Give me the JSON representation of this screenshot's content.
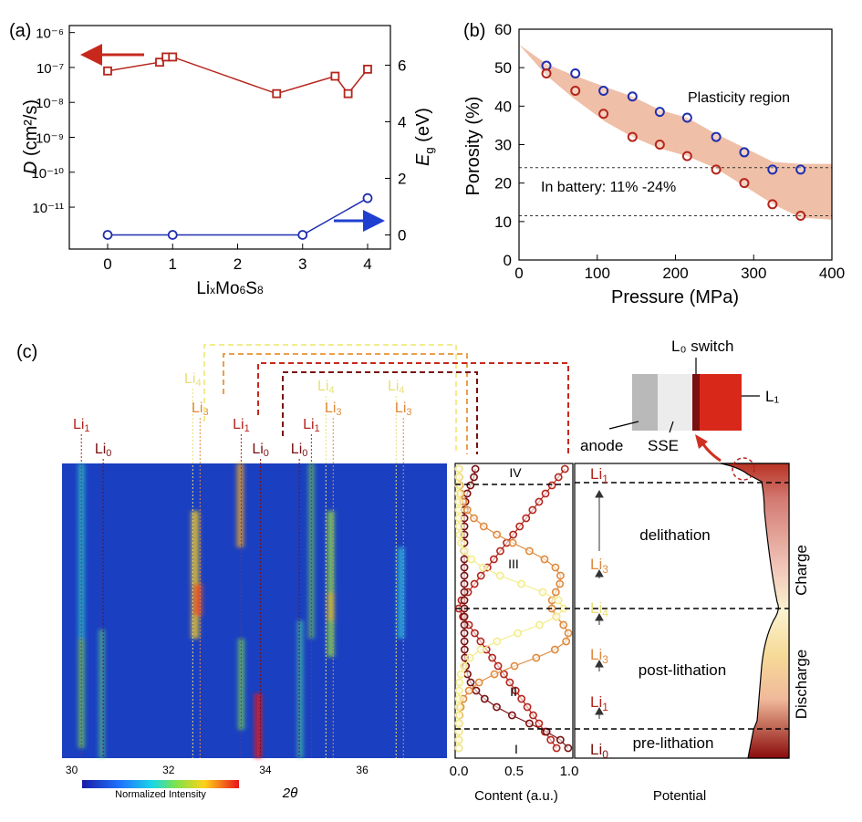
{
  "panels": {
    "a": "(a)",
    "b": "(b)",
    "c": "(c)"
  },
  "colors": {
    "red": "#b5251c",
    "blue": "#1f2fb0",
    "orange_fill": "#e9a98a",
    "darkred": "#7a1010",
    "orange": "#e08a3c",
    "yellow": "#f0e070",
    "lightyellow": "#f6ef9a"
  },
  "chart_data": [
    {
      "panel": "a",
      "type": "line",
      "xlabel": "LixMo6S8",
      "xticks": [
        "0",
        "1",
        "2",
        "3",
        "4"
      ],
      "ylabel_left": "D (cm²/s)",
      "ylabel_right": "Eg (eV)",
      "yticks_left": [
        "10⁻⁶",
        "10⁻⁷",
        "10⁻⁸",
        "10⁻⁹",
        "10⁻¹⁰",
        "10⁻¹¹"
      ],
      "yticks_right": [
        "6",
        "4",
        "2",
        "0"
      ],
      "ylim_left_log10": [
        -12.2,
        -5.8
      ],
      "ylim_right": [
        -0.5,
        7.4
      ],
      "series": [
        {
          "axis": "left",
          "marker": "square",
          "color": "#b5251c",
          "x": [
            0,
            0.8,
            0.9,
            1.0,
            2.6,
            3.5,
            3.7,
            4.0
          ],
          "log10_y": [
            -7.1,
            -6.85,
            -6.7,
            -6.7,
            -7.75,
            -7.25,
            -7.75,
            -7.05
          ]
        },
        {
          "axis": "right",
          "marker": "circle",
          "color": "#1f2fb0",
          "x": [
            0,
            1,
            3,
            4
          ],
          "y": [
            0,
            0,
            0,
            1.3
          ]
        }
      ]
    },
    {
      "panel": "b",
      "type": "scatter",
      "xlabel": "Pressure (MPa)",
      "ylabel": "Porosity (%)",
      "xlim": [
        0,
        400
      ],
      "ylim": [
        0,
        60
      ],
      "xticks": [
        "0",
        "100",
        "200",
        "300",
        "400"
      ],
      "yticks": [
        "0",
        "10",
        "20",
        "30",
        "40",
        "50",
        "60"
      ],
      "annotations": [
        "Plasticity region",
        "In battery: 11% -24%"
      ],
      "hlines": [
        24,
        11.5
      ],
      "band": {
        "x": [
          0,
          35,
          70,
          110,
          145,
          180,
          215,
          250,
          290,
          325,
          360,
          400
        ],
        "upper": [
          56,
          51,
          48,
          45,
          42.5,
          39,
          37,
          33,
          29,
          25.5,
          25,
          25
        ],
        "lower": [
          56,
          48,
          42,
          36,
          32,
          29,
          27,
          24,
          19,
          14.5,
          11,
          10.5
        ]
      },
      "series": [
        {
          "marker": "circle",
          "color": "#1f2fb0",
          "x": [
            35,
            72,
            108,
            145,
            180,
            215,
            252,
            288,
            324,
            360
          ],
          "y": [
            50.5,
            48.5,
            44,
            42.5,
            38.5,
            37,
            32,
            28,
            23.5,
            23.5
          ]
        },
        {
          "marker": "circle",
          "color": "#b5251c",
          "x": [
            35,
            72,
            108,
            145,
            180,
            215,
            252,
            288,
            324,
            360
          ],
          "y": [
            48.5,
            44,
            38,
            32,
            30,
            27,
            23.5,
            20,
            14.5,
            11.5
          ]
        }
      ]
    },
    {
      "panel": "c-heatmap",
      "type": "heatmap",
      "xlabel": "2θ",
      "xticks": [
        "30",
        "32",
        "34",
        "36"
      ],
      "colorbar_label": "Normalized Intensity",
      "peak_labels": [
        {
          "text": "Li1",
          "color": "#b5251c"
        },
        {
          "text": "Li0",
          "color": "#7a1010"
        },
        {
          "text": "Li4",
          "color": "#e8df78"
        },
        {
          "text": "Li3",
          "color": "#e08a3c"
        },
        {
          "text": "Li1",
          "color": "#b5251c"
        },
        {
          "text": "Li0",
          "color": "#7a1010"
        },
        {
          "text": "Li0",
          "color": "#7a1010"
        },
        {
          "text": "Li1",
          "color": "#b5251c"
        },
        {
          "text": "Li4",
          "color": "#e8df78"
        },
        {
          "text": "Li3",
          "color": "#e08a3c"
        },
        {
          "text": "Li4",
          "color": "#e8df78"
        },
        {
          "text": "Li3",
          "color": "#e08a3c"
        }
      ],
      "peak_positions_2theta": [
        30.2,
        30.65,
        32.5,
        32.65,
        33.5,
        33.9,
        34.7,
        34.95,
        35.25,
        35.4,
        36.7,
        36.85
      ]
    },
    {
      "panel": "c-content",
      "type": "line",
      "xlabel": "Content (a.u.)",
      "xticks": [
        "0.0",
        "0.5",
        "1.0"
      ],
      "regions": [
        "I",
        "II",
        "III",
        "IV"
      ]
    },
    {
      "panel": "c-potential",
      "type": "area",
      "xlabel": "Potential",
      "phases": [
        "Li1",
        "Li3",
        "Li4",
        "Li3",
        "Li1",
        "Li0"
      ],
      "regions": [
        "delithation",
        "post-lithation",
        "pre-lithation"
      ],
      "side_labels": [
        "Charge",
        "Discharge"
      ]
    }
  ],
  "schematic": {
    "l0_switch": "L₀ switch",
    "l1": "L₁",
    "anode": "anode",
    "sse": "SSE"
  }
}
